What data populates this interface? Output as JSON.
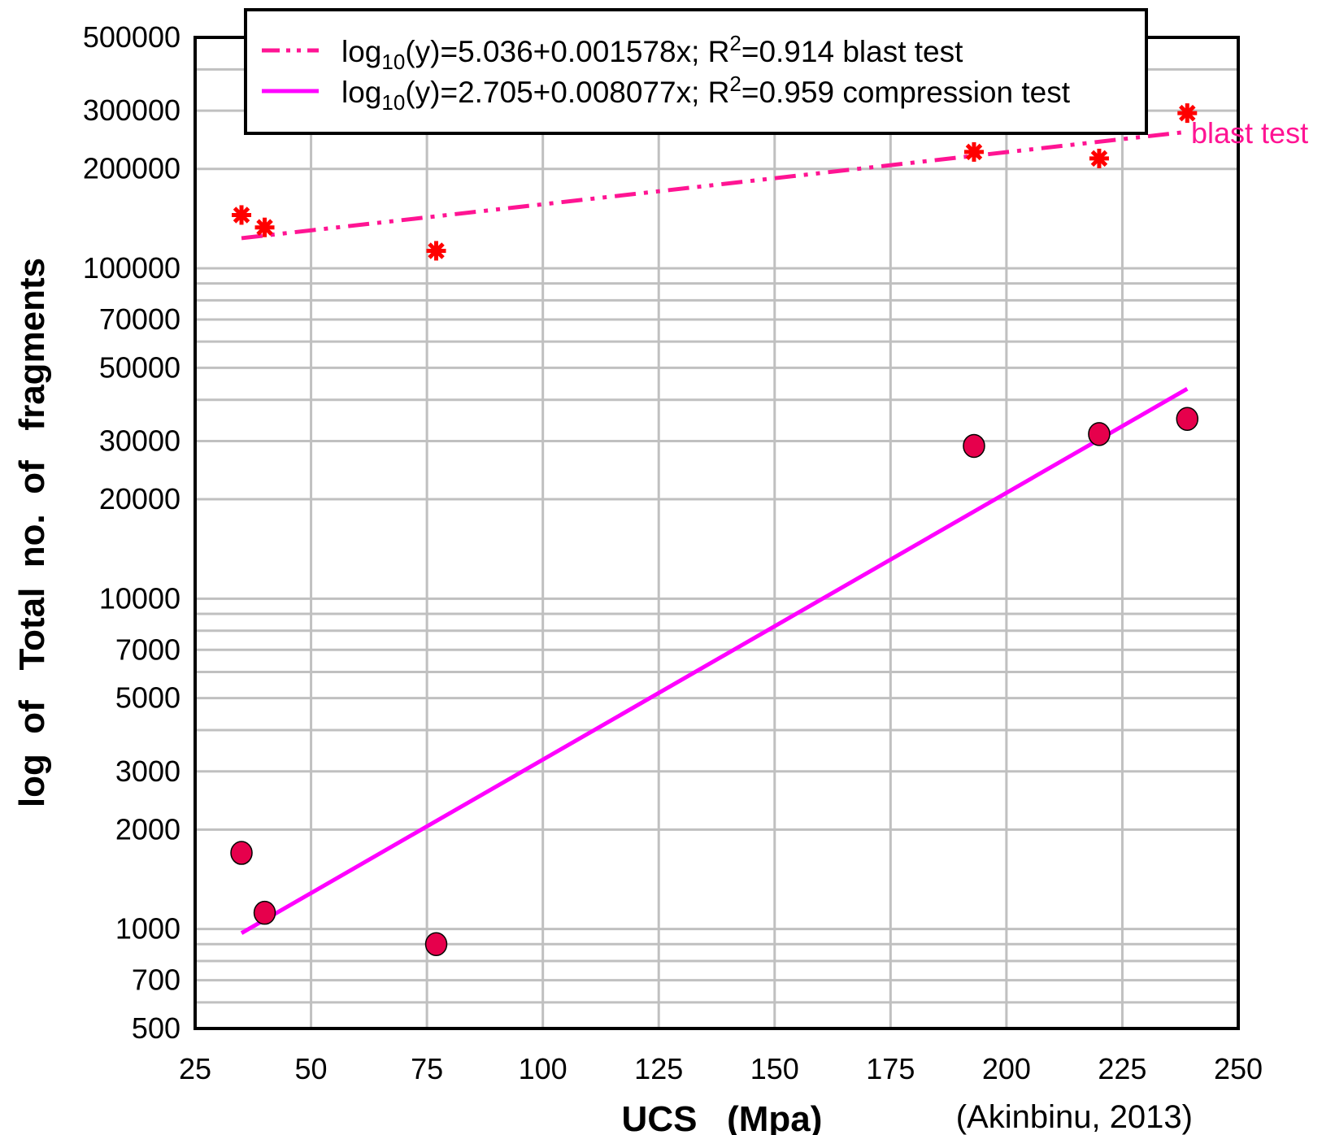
{
  "chart_data": {
    "type": "scatter",
    "title": "",
    "xlabel": "UCS   (Mpa)",
    "ylabel": "log  of   Total  no.  of   fragments",
    "xlim": [
      25,
      250
    ],
    "ylim": [
      500,
      500000
    ],
    "yscale": "log",
    "grid": true,
    "x_ticks": [
      25,
      50,
      75,
      100,
      125,
      150,
      175,
      200,
      225,
      250
    ],
    "y_ticks": [
      500,
      700,
      1000,
      2000,
      3000,
      5000,
      7000,
      10000,
      20000,
      30000,
      50000,
      70000,
      100000,
      200000,
      300000,
      500000
    ],
    "legend_position": "top",
    "series": [
      {
        "name": "blast test",
        "marker": "asterisk",
        "color": "#ff0000",
        "x": [
          35,
          40,
          77,
          193,
          220,
          239
        ],
        "y": [
          145000,
          133000,
          113000,
          225000,
          215000,
          295000
        ]
      },
      {
        "name": "compression test",
        "marker": "circle",
        "color": "#e6004c",
        "x": [
          35,
          40,
          77,
          193,
          220,
          239
        ],
        "y": [
          1700,
          1120,
          900,
          29000,
          31500,
          35000
        ]
      }
    ],
    "fits": [
      {
        "legend_prefix": "log",
        "legend_sub": "10",
        "legend_mid": "(y)=5.036+0.001578x; R",
        "legend_sup": "2",
        "legend_suffix": "=0.914 blast test",
        "intercept": 5.036,
        "slope": 0.001578,
        "x_range": [
          35,
          239
        ],
        "style": "dash-dot-dot",
        "color": "#ff1493"
      },
      {
        "legend_prefix": "log",
        "legend_sub": "10",
        "legend_mid": "(y)=2.705+0.008077x; R",
        "legend_sup": "2",
        "legend_suffix": "=0.959 compression test",
        "intercept": 2.705,
        "slope": 0.008077,
        "x_range": [
          35,
          239
        ],
        "style": "solid",
        "color": "#ff00ff"
      }
    ],
    "annotations": [
      {
        "text": "blast test",
        "color": "#ff1493"
      }
    ],
    "source": "(Akinbinu, 2013)"
  }
}
